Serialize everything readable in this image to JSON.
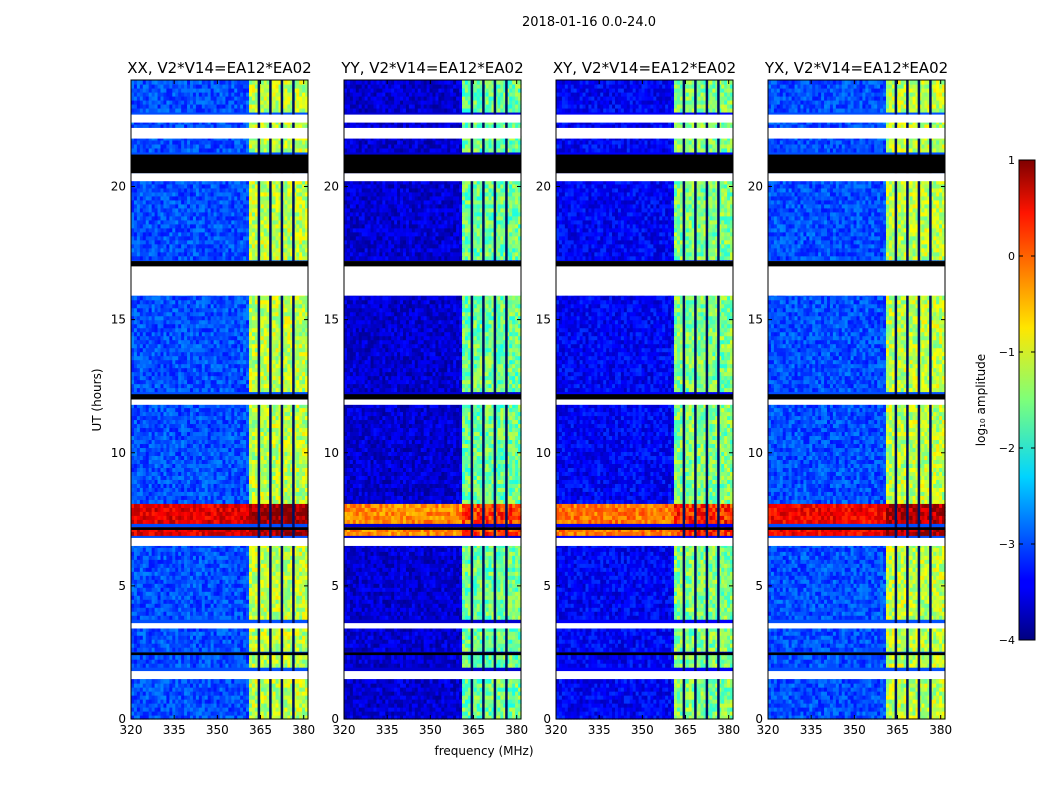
{
  "suptitle": "2018-01-16 0.0-24.0",
  "xlabel": "frequency (MHz)",
  "ylabel": "UT (hours)",
  "colorbar_label": "log₁₀ amplitude",
  "chart_data": {
    "type": "heatmap",
    "title": "2018-01-16 0.0-24.0",
    "xlabel": "frequency (MHz)",
    "ylabel": "UT (hours)",
    "xlim": [
      320,
      381.5
    ],
    "ylim": [
      0,
      24
    ],
    "x_ticks": [
      320,
      335,
      350,
      365,
      380
    ],
    "y_ticks": [
      0,
      5,
      10,
      15,
      20
    ],
    "colorbar": {
      "label": "log10 amplitude",
      "min": -4,
      "max": 1,
      "ticks": [
        -4,
        -3,
        -2,
        -1,
        0,
        1
      ],
      "colormap": "jet"
    },
    "panels": [
      {
        "title": "XX, V2*V14=EA12*EA02",
        "base_level": -3.0,
        "band_level": -1.2,
        "storm_level": 0.5
      },
      {
        "title": "YY, V2*V14=EA12*EA02",
        "base_level": -3.6,
        "band_level": -1.6,
        "storm_level": -0.3
      },
      {
        "title": "XY, V2*V14=EA12*EA02",
        "base_level": -3.4,
        "band_level": -1.5,
        "storm_level": -0.2
      },
      {
        "title": "YX, V2*V14=EA12*EA02",
        "base_level": -3.0,
        "band_level": -1.2,
        "storm_level": 0.4
      }
    ],
    "rfi_band_MHz": [
      360.5,
      381.5
    ],
    "band_gaps_MHz": [
      364,
      368,
      372,
      376
    ],
    "enhanced_interval_hours": [
      6.8,
      8.0
    ],
    "flagged_intervals_hours": [
      [
        1.5,
        1.8
      ],
      [
        3.4,
        3.6
      ],
      [
        6.5,
        6.8
      ],
      [
        11.8,
        12.0
      ],
      [
        15.9,
        17.2
      ],
      [
        20.2,
        20.5
      ],
      [
        21.8,
        22.2
      ],
      [
        22.4,
        22.7
      ]
    ],
    "no_data_intervals_hours": [
      [
        2.4,
        2.5
      ],
      [
        7.1,
        7.2
      ],
      [
        12.0,
        12.2
      ],
      [
        17.0,
        17.2
      ],
      [
        20.5,
        21.2
      ]
    ]
  }
}
